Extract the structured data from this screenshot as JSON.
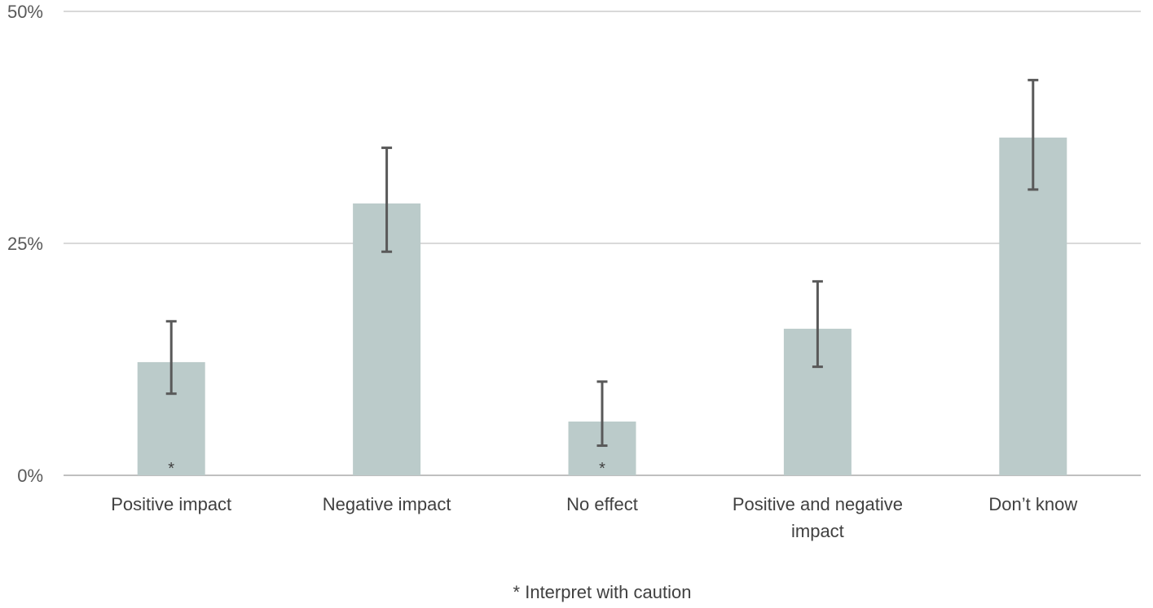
{
  "chart_data": {
    "type": "bar",
    "title": "",
    "xlabel": "",
    "ylabel": "",
    "ylim": [
      0,
      50
    ],
    "yticks": [
      0,
      25,
      50
    ],
    "ytick_labels": [
      "0%",
      "25%",
      "50%"
    ],
    "grid": true,
    "categories": [
      [
        "Positive impact"
      ],
      [
        "Negative impact"
      ],
      [
        "No effect"
      ],
      [
        "Positive and negative",
        "impact"
      ],
      [
        "Don’t know"
      ]
    ],
    "values": [
      12.2,
      29.3,
      5.8,
      15.8,
      36.4
    ],
    "error_low": [
      8.8,
      24.1,
      3.2,
      11.7,
      30.8
    ],
    "error_high": [
      16.6,
      35.3,
      10.1,
      20.9,
      42.6
    ],
    "caution_flags": [
      true,
      false,
      true,
      false,
      false
    ],
    "caution_mark": "*",
    "footnote": "* Interpret with caution",
    "colors": {
      "bar": "#BBCBCA",
      "error_bar": "#595959",
      "gridline": "#D9D9D9",
      "axis": "#BFBFBF"
    }
  }
}
